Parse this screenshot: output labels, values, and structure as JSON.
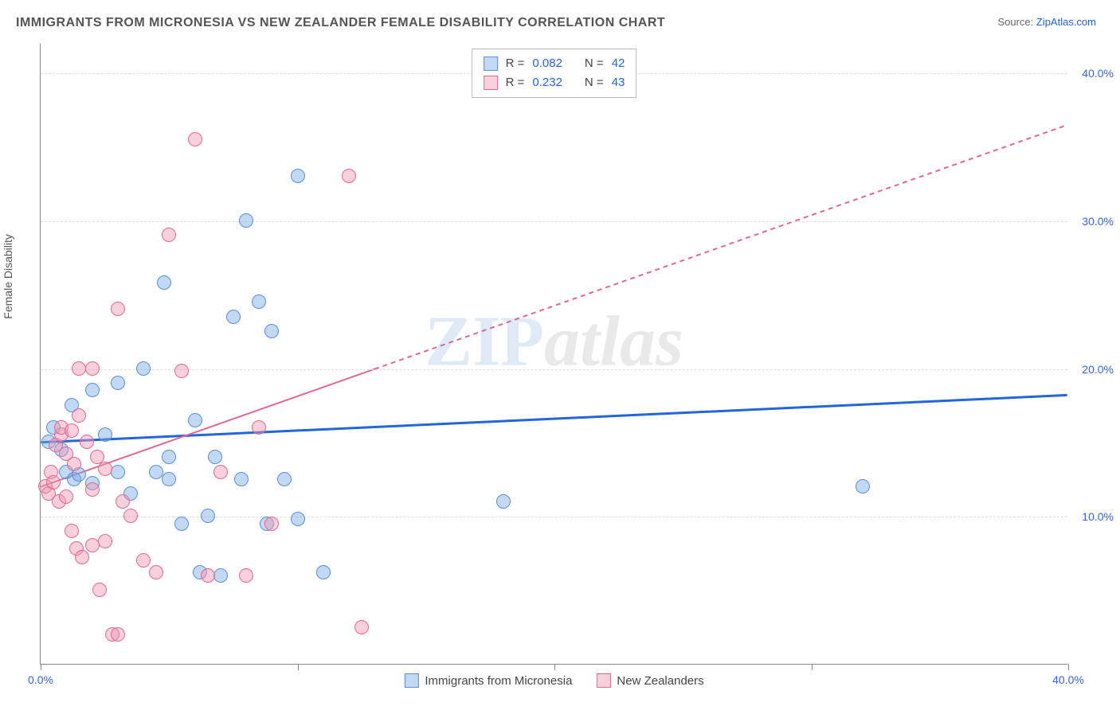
{
  "title": "IMMIGRANTS FROM MICRONESIA VS NEW ZEALANDER FEMALE DISABILITY CORRELATION CHART",
  "source_prefix": "Source: ",
  "source_name": "ZipAtlas.com",
  "ylabel": "Female Disability",
  "watermark_a": "ZIP",
  "watermark_b": "atlas",
  "chart": {
    "type": "scatter",
    "xlim": [
      0,
      40
    ],
    "ylim": [
      0,
      42
    ],
    "x_ticks": [
      0,
      20,
      40
    ],
    "x_tick_labels": [
      "0.0%",
      "",
      "40.0%"
    ],
    "y_ticks": [
      10,
      20,
      30,
      40
    ],
    "y_tick_labels": [
      "10.0%",
      "20.0%",
      "30.0%",
      "40.0%"
    ],
    "background_color": "#ffffff",
    "grid_color": "#dddddd",
    "axis_color": "#888888",
    "tick_label_color": "#3366dd",
    "point_radius": 9,
    "series": [
      {
        "id": "micronesia",
        "label": "Immigrants from Micronesia",
        "fill": "rgba(120,170,230,0.45)",
        "stroke": "#5b8fd6",
        "trend_color": "#2266dd",
        "trend_width": 3,
        "trend_dash": "none",
        "R": "0.082",
        "N": "42",
        "trend": {
          "x1": 0,
          "y1": 15.0,
          "x2": 40,
          "y2": 18.2
        },
        "points": [
          [
            0.3,
            15
          ],
          [
            0.5,
            16
          ],
          [
            0.8,
            14.5
          ],
          [
            1.0,
            13
          ],
          [
            1.2,
            17.5
          ],
          [
            1.3,
            12.5
          ],
          [
            1.5,
            12.8
          ],
          [
            2.0,
            12.2
          ],
          [
            2.0,
            18.5
          ],
          [
            2.5,
            15.5
          ],
          [
            3.0,
            13
          ],
          [
            3.0,
            19.0
          ],
          [
            3.5,
            11.5
          ],
          [
            4.0,
            20
          ],
          [
            4.5,
            13.0
          ],
          [
            4.8,
            25.8
          ],
          [
            5.0,
            12.5
          ],
          [
            5.0,
            14.0
          ],
          [
            5.5,
            9.5
          ],
          [
            6.0,
            16.5
          ],
          [
            6.2,
            6.2
          ],
          [
            6.5,
            10.0
          ],
          [
            6.8,
            14.0
          ],
          [
            7.0,
            6.0
          ],
          [
            7.5,
            23.5
          ],
          [
            7.8,
            12.5
          ],
          [
            8.0,
            30.0
          ],
          [
            8.5,
            24.5
          ],
          [
            8.8,
            9.5
          ],
          [
            9.0,
            22.5
          ],
          [
            9.5,
            12.5
          ],
          [
            10.0,
            33.0
          ],
          [
            10.0,
            9.8
          ],
          [
            11.0,
            6.2
          ],
          [
            18.0,
            11.0
          ],
          [
            32.0,
            12.0
          ]
        ]
      },
      {
        "id": "newzealand",
        "label": "New Zealanders",
        "fill": "rgba(240,150,175,0.45)",
        "stroke": "#e06a8f",
        "trend_color": "#e06a8f",
        "trend_width": 2,
        "trend_dash": "6,5",
        "R": "0.232",
        "N": "43",
        "trend": {
          "x1": 0,
          "y1": 12.0,
          "x2": 40,
          "y2": 36.5
        },
        "trend_solid_until_x": 13,
        "points": [
          [
            0.2,
            12.0
          ],
          [
            0.3,
            11.5
          ],
          [
            0.4,
            13.0
          ],
          [
            0.5,
            12.3
          ],
          [
            0.6,
            14.8
          ],
          [
            0.7,
            11.0
          ],
          [
            0.8,
            15.5
          ],
          [
            0.8,
            16.0
          ],
          [
            1.0,
            14.2
          ],
          [
            1.0,
            11.3
          ],
          [
            1.2,
            15.8
          ],
          [
            1.2,
            9.0
          ],
          [
            1.3,
            13.5
          ],
          [
            1.4,
            7.8
          ],
          [
            1.5,
            16.8
          ],
          [
            1.5,
            20.0
          ],
          [
            1.6,
            7.2
          ],
          [
            1.8,
            15.0
          ],
          [
            2.0,
            8.0
          ],
          [
            2.0,
            11.8
          ],
          [
            2.0,
            20.0
          ],
          [
            2.2,
            14.0
          ],
          [
            2.3,
            5.0
          ],
          [
            2.5,
            13.2
          ],
          [
            2.5,
            8.3
          ],
          [
            2.8,
            2.0
          ],
          [
            3.0,
            2.0
          ],
          [
            3.0,
            24.0
          ],
          [
            3.2,
            11.0
          ],
          [
            3.5,
            10.0
          ],
          [
            4.0,
            7.0
          ],
          [
            4.5,
            6.2
          ],
          [
            5.0,
            29.0
          ],
          [
            5.5,
            19.8
          ],
          [
            6.0,
            35.5
          ],
          [
            6.5,
            6.0
          ],
          [
            7.0,
            13.0
          ],
          [
            8.0,
            6.0
          ],
          [
            8.5,
            16.0
          ],
          [
            9.0,
            9.5
          ],
          [
            12.0,
            33.0
          ],
          [
            12.5,
            2.5
          ]
        ]
      }
    ]
  },
  "legend_top": {
    "r_label": "R =",
    "n_label": "N ="
  }
}
